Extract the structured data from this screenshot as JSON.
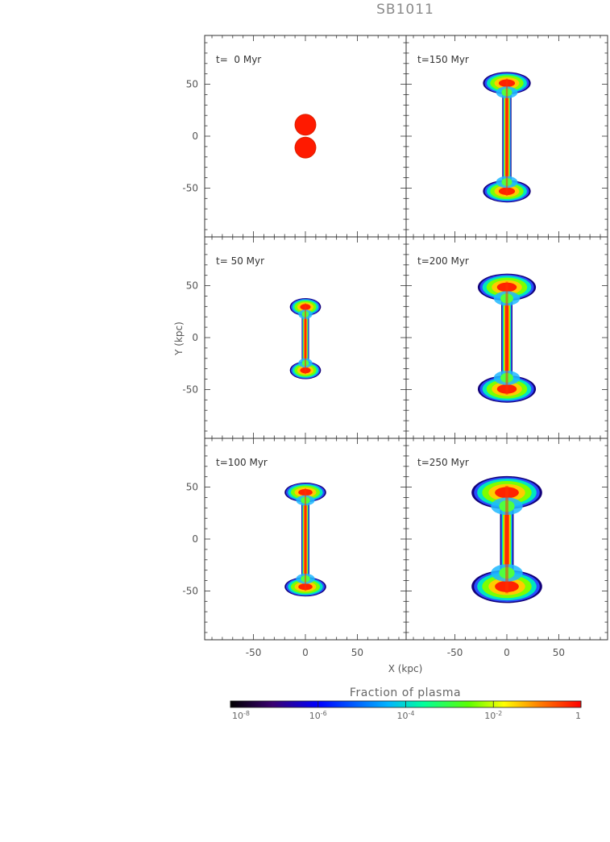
{
  "chart_data": {
    "type": "heatmap",
    "title": "SB1011",
    "xlabel": "X (kpc)",
    "ylabel": "Y (kpc)",
    "xlim": [
      -97,
      97
    ],
    "ylim": [
      -97,
      97
    ],
    "x_ticks": [
      -50,
      0,
      50
    ],
    "y_ticks": [
      50,
      0,
      -50
    ],
    "panel_layout": "3 rows x 2 columns",
    "panels": [
      {
        "label": "t=  0 Myr",
        "time_myr": 0,
        "morphology": "two spherical plasma bubbles",
        "lobes": [
          {
            "x": 0,
            "y": 11
          },
          {
            "x": 0,
            "y": -11
          }
        ],
        "lobe_radius": 9.5,
        "extent_y": [
          -21,
          21
        ]
      },
      {
        "label": "t=150 Myr",
        "time_myr": 150,
        "morphology": "double-lobed outflow",
        "extent_y": [
          -60,
          58
        ],
        "lobe_half_width": 23
      },
      {
        "label": "t= 50 Myr",
        "time_myr": 50,
        "morphology": "double-lobed outflow",
        "extent_y": [
          -37,
          35
        ],
        "lobe_half_width": 15
      },
      {
        "label": "t=200 Myr",
        "time_myr": 200,
        "morphology": "double-lobed outflow",
        "extent_y": [
          -58,
          57
        ],
        "lobe_half_width": 28
      },
      {
        "label": "t=100 Myr",
        "time_myr": 100,
        "morphology": "double-lobed outflow",
        "extent_y": [
          -52,
          51
        ],
        "lobe_half_width": 20
      },
      {
        "label": "t=250 Myr",
        "time_myr": 250,
        "morphology": "double-lobed outflow",
        "extent_y": [
          -56,
          55
        ],
        "lobe_half_width": 34
      }
    ],
    "colorbar": {
      "label": "Fraction of plasma",
      "scale": "log",
      "range": [
        1e-08,
        1
      ],
      "ticks": [
        {
          "base": "10",
          "exp": "-8"
        },
        {
          "base": "10",
          "exp": "-6"
        },
        {
          "base": "10",
          "exp": "-4"
        },
        {
          "base": "10",
          "exp": "-2"
        },
        {
          "base": "1",
          "exp": ""
        }
      ],
      "colors": [
        "#000000",
        "#3a0070",
        "#0000ff",
        "#00b4ff",
        "#00ff9c",
        "#5cff00",
        "#ffff00",
        "#ff8000",
        "#ff0000"
      ]
    }
  }
}
